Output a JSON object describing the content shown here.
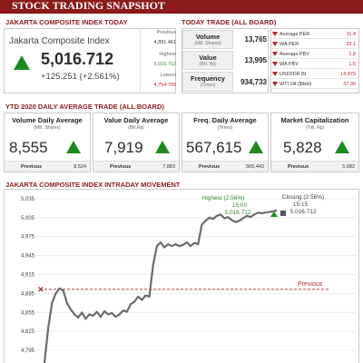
{
  "page_title": "STOCK TRADING SNAPSHOT",
  "jci": {
    "section_title": "JAKARTA COMPOSITE INDEX TODAY",
    "name": "Jakarta Composite Index",
    "value": "5,016.712",
    "change": "+125.251 (+2.561%)",
    "previous_label": "Previous",
    "previous_value": "4,891.461",
    "highest_label": "Highest",
    "highest_value": "5,016.712",
    "lowest_label": "Lowest",
    "lowest_value": "4,754.799"
  },
  "today_trade": {
    "section_title": "TODAY TRADE (ALL BOARD)",
    "rows": [
      {
        "label": "Volume",
        "sub": "(Mill. Shares)",
        "value": "13,765"
      },
      {
        "label": "Value",
        "sub": "(Bill. Rp)",
        "value": "13,995"
      },
      {
        "label": "Frequency",
        "sub": "(Times)",
        "value": "934,733"
      }
    ],
    "indicators": [
      {
        "label": "Average PER",
        "value": "11.4"
      },
      {
        "label": "WA PER",
        "value": "33.1"
      },
      {
        "label": "Average PBV",
        "value": "1.8"
      },
      {
        "label": "WA PBV",
        "value": "1.6"
      },
      {
        "label": "USD/IDR BI",
        "value": "14,979"
      },
      {
        "label": "WTI Oil ($/bbl)",
        "value": "37.30"
      }
    ]
  },
  "ytd": {
    "section_title": "YTD 2020 DAILY AVERAGE TRADE (ALL BOARD)",
    "boxes": [
      {
        "title": "Volume Daily Average",
        "sub": "(Mill. Shares)",
        "value": "8,555",
        "prev_label": "Previous",
        "prev_value": "8,524"
      },
      {
        "title": "Value Daily Average",
        "sub": "(Bill.Rp)",
        "value": "7,919",
        "prev_label": "Previous",
        "prev_value": "7,883"
      },
      {
        "title": "Freq. Daily Average",
        "sub": "(Times)",
        "value": "567,615",
        "prev_label": "Previous",
        "prev_value": "565,443"
      },
      {
        "title": "Market Capitalization",
        "sub": "(Trill. Rp)",
        "value": "5,828",
        "prev_label": "Previous",
        "prev_value": "5,682"
      }
    ]
  },
  "intraday": {
    "section_title": "JAKARTA COMPOSITE INDEX INTRADAY MOVEMENT",
    "highest_label": "Highest (2.56%)",
    "highest_time": "15:00",
    "highest_value": "5,016.712",
    "closing_label": "Closing (2.56%)",
    "closing_time": "15:15",
    "closing_value": "5,016.712",
    "previous_label": "Previous"
  },
  "colors": {
    "brand": "#8b1a1a",
    "up": "#1e8a1e",
    "down": "#c0202a",
    "line": "#6b6b6b",
    "previous_line": "#a33"
  },
  "chart_data": {
    "type": "line",
    "title": "JAKARTA COMPOSITE INDEX INTRADAY MOVEMENT",
    "ylim": [
      4775,
      5045
    ],
    "yticks": [
      "5,035",
      "5,005",
      "4,975",
      "4,945",
      "4,915",
      "4,885",
      "4,855",
      "4,825",
      "4,795"
    ],
    "ytick_values": [
      5035,
      5005,
      4975,
      4945,
      4915,
      4885,
      4855,
      4825,
      4795
    ],
    "previous": 4891.461,
    "series": [
      {
        "values": [
          4775,
          4830,
          4870,
          4885,
          4893,
          4890,
          4870,
          4860,
          4852,
          4847,
          4855,
          4845,
          4852,
          4850,
          4856,
          4848,
          4857,
          4852,
          4854,
          4848,
          4852,
          4858,
          4856,
          4868,
          4872,
          4880,
          4875,
          4882,
          4880,
          4930,
          4960,
          4966,
          4958,
          4963,
          4960,
          4963,
          4960,
          4962,
          4966,
          4960,
          4965,
          4963,
          4994,
          5000,
          5005,
          5003,
          5008,
          5010,
          5004,
          5006,
          5001,
          4998,
          5000,
          5004,
          5008,
          5006,
          5010,
          5013,
          5012,
          5013,
          5014,
          5015,
          5016.712
        ]
      }
    ]
  }
}
